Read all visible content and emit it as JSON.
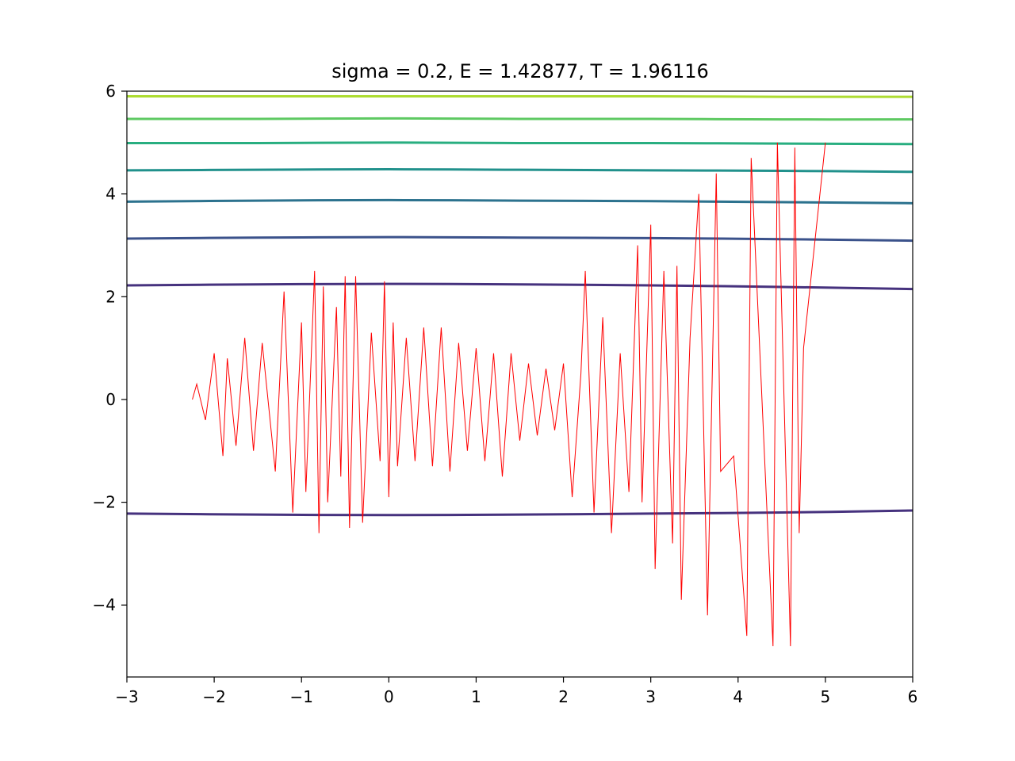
{
  "chart_data": {
    "type": "line",
    "title": "sigma = 0.2, E = 1.42877, T = 1.96116",
    "xlabel": "",
    "ylabel": "",
    "xlim": [
      -3,
      6
    ],
    "ylim": [
      -5.4,
      6
    ],
    "xticks": [
      -3,
      -2,
      -1,
      0,
      1,
      2,
      3,
      4,
      5,
      6
    ],
    "yticks": [
      -4,
      -2,
      0,
      2,
      4,
      6
    ],
    "xtick_labels": [
      "−3",
      "−2",
      "−1",
      "0",
      "1",
      "2",
      "3",
      "4",
      "5",
      "6"
    ],
    "ytick_labels": [
      "−4",
      "−2",
      "0",
      "2",
      "4",
      "6"
    ],
    "grid": false,
    "contours": [
      {
        "color": "#46327e",
        "x": [
          -3,
          -1.5,
          0,
          1.5,
          3,
          4.5,
          6
        ],
        "y": [
          -2.22,
          -2.24,
          -2.25,
          -2.24,
          -2.22,
          -2.2,
          -2.16
        ]
      },
      {
        "color": "#46327e",
        "x": [
          -3,
          -1.5,
          0,
          1.5,
          3,
          4.5,
          6
        ],
        "y": [
          2.22,
          2.24,
          2.25,
          2.24,
          2.22,
          2.19,
          2.15
        ]
      },
      {
        "color": "#3b528b",
        "x": [
          -3,
          -1.5,
          0,
          1.5,
          3,
          4.5,
          6
        ],
        "y": [
          3.13,
          3.15,
          3.16,
          3.15,
          3.14,
          3.12,
          3.09
        ]
      },
      {
        "color": "#2c728e",
        "x": [
          -3,
          -1.5,
          0,
          1.5,
          3,
          4.5,
          6
        ],
        "y": [
          3.85,
          3.87,
          3.88,
          3.87,
          3.86,
          3.84,
          3.82
        ]
      },
      {
        "color": "#21918c",
        "x": [
          -3,
          -1.5,
          0,
          1.5,
          3,
          4.5,
          6
        ],
        "y": [
          4.46,
          4.47,
          4.48,
          4.47,
          4.46,
          4.45,
          4.43
        ]
      },
      {
        "color": "#28ae80",
        "x": [
          -3,
          -1.5,
          0,
          1.5,
          3,
          4.5,
          6
        ],
        "y": [
          4.99,
          4.99,
          5.0,
          4.99,
          4.99,
          4.98,
          4.97
        ]
      },
      {
        "color": "#5ec962",
        "x": [
          -3,
          -1.5,
          0,
          1.5,
          3,
          4.5,
          6
        ],
        "y": [
          5.46,
          5.46,
          5.47,
          5.46,
          5.46,
          5.45,
          5.45
        ]
      },
      {
        "color": "#addc30",
        "x": [
          -3,
          -1.5,
          0,
          1.5,
          3,
          4.5,
          6
        ],
        "y": [
          5.9,
          5.9,
          5.9,
          5.9,
          5.9,
          5.89,
          5.89
        ]
      }
    ],
    "trajectory": {
      "color": "#ff0000",
      "x": [
        -2.25,
        -2.2,
        -2.1,
        -2.0,
        -1.9,
        -1.85,
        -1.75,
        -1.65,
        -1.55,
        -1.45,
        -1.3,
        -1.2,
        -1.1,
        -1.0,
        -0.95,
        -0.85,
        -0.8,
        -0.75,
        -0.7,
        -0.6,
        -0.55,
        -0.5,
        -0.45,
        -0.38,
        -0.3,
        -0.2,
        -0.1,
        -0.05,
        0.0,
        0.05,
        0.1,
        0.2,
        0.3,
        0.4,
        0.5,
        0.6,
        0.7,
        0.8,
        0.9,
        1.0,
        1.1,
        1.2,
        1.3,
        1.4,
        1.5,
        1.6,
        1.7,
        1.8,
        1.9,
        2.0,
        2.1,
        2.2,
        2.25,
        2.35,
        2.45,
        2.55,
        2.65,
        2.75,
        2.85,
        2.9,
        3.0,
        3.05,
        3.15,
        3.25,
        3.3,
        3.35,
        3.45,
        3.55,
        3.65,
        3.75,
        3.8,
        3.95,
        4.1,
        4.15,
        4.4,
        4.45,
        4.6,
        4.65,
        4.7,
        4.75,
        5.0
      ],
      "y": [
        0.0,
        0.3,
        -0.4,
        0.9,
        -1.1,
        0.8,
        -0.9,
        1.2,
        -1.0,
        1.1,
        -1.4,
        2.1,
        -2.2,
        1.5,
        -1.8,
        2.5,
        -2.6,
        2.2,
        -2.0,
        1.8,
        -1.5,
        2.4,
        -2.5,
        2.4,
        -2.4,
        1.3,
        -1.2,
        2.3,
        -1.9,
        1.5,
        -1.3,
        1.2,
        -1.2,
        1.4,
        -1.3,
        1.4,
        -1.4,
        1.1,
        -1.0,
        1.0,
        -1.2,
        0.9,
        -1.5,
        0.9,
        -0.8,
        0.7,
        -0.7,
        0.6,
        -0.6,
        0.7,
        -1.9,
        0.5,
        2.5,
        -2.2,
        1.6,
        -2.6,
        0.9,
        -1.8,
        3.0,
        -2.0,
        3.4,
        -3.3,
        2.5,
        -2.8,
        2.6,
        -3.9,
        1.2,
        4.0,
        -4.2,
        4.4,
        -1.4,
        -1.1,
        -4.6,
        4.7,
        -4.8,
        5.0,
        -4.8,
        4.9,
        -2.6,
        1.0,
        5.0
      ]
    }
  }
}
